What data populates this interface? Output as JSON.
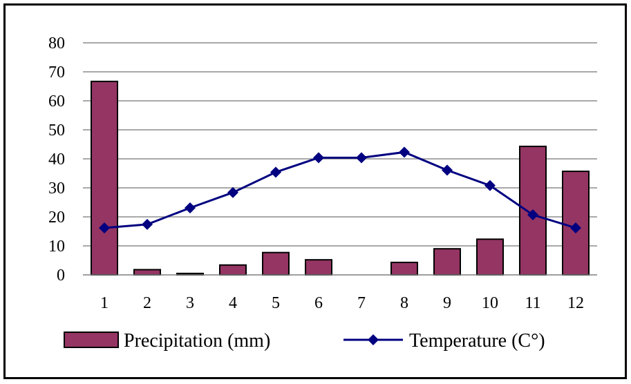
{
  "chart_data": {
    "type": "bar",
    "categories": [
      "1",
      "2",
      "3",
      "4",
      "5",
      "6",
      "7",
      "8",
      "9",
      "10",
      "11",
      "12"
    ],
    "ylim": [
      0,
      80
    ],
    "yticks": [
      "0",
      "10",
      "20",
      "30",
      "40",
      "50",
      "60",
      "70",
      "80"
    ],
    "grid": true,
    "legend_position": "bottom",
    "series": [
      {
        "name": "Precipitation (mm)",
        "type": "bar",
        "color": "#953563",
        "values": [
          66.7,
          1.8,
          0.5,
          3.4,
          7.7,
          5.2,
          0,
          4.3,
          9.0,
          12.3,
          44.3,
          35.7
        ]
      },
      {
        "name": "Temperature (C°)",
        "type": "line",
        "color": "#000080",
        "values": [
          16.2,
          17.4,
          23.1,
          28.4,
          35.4,
          40.4,
          40.4,
          42.3,
          36.1,
          30.8,
          20.7,
          16.2
        ]
      }
    ]
  }
}
